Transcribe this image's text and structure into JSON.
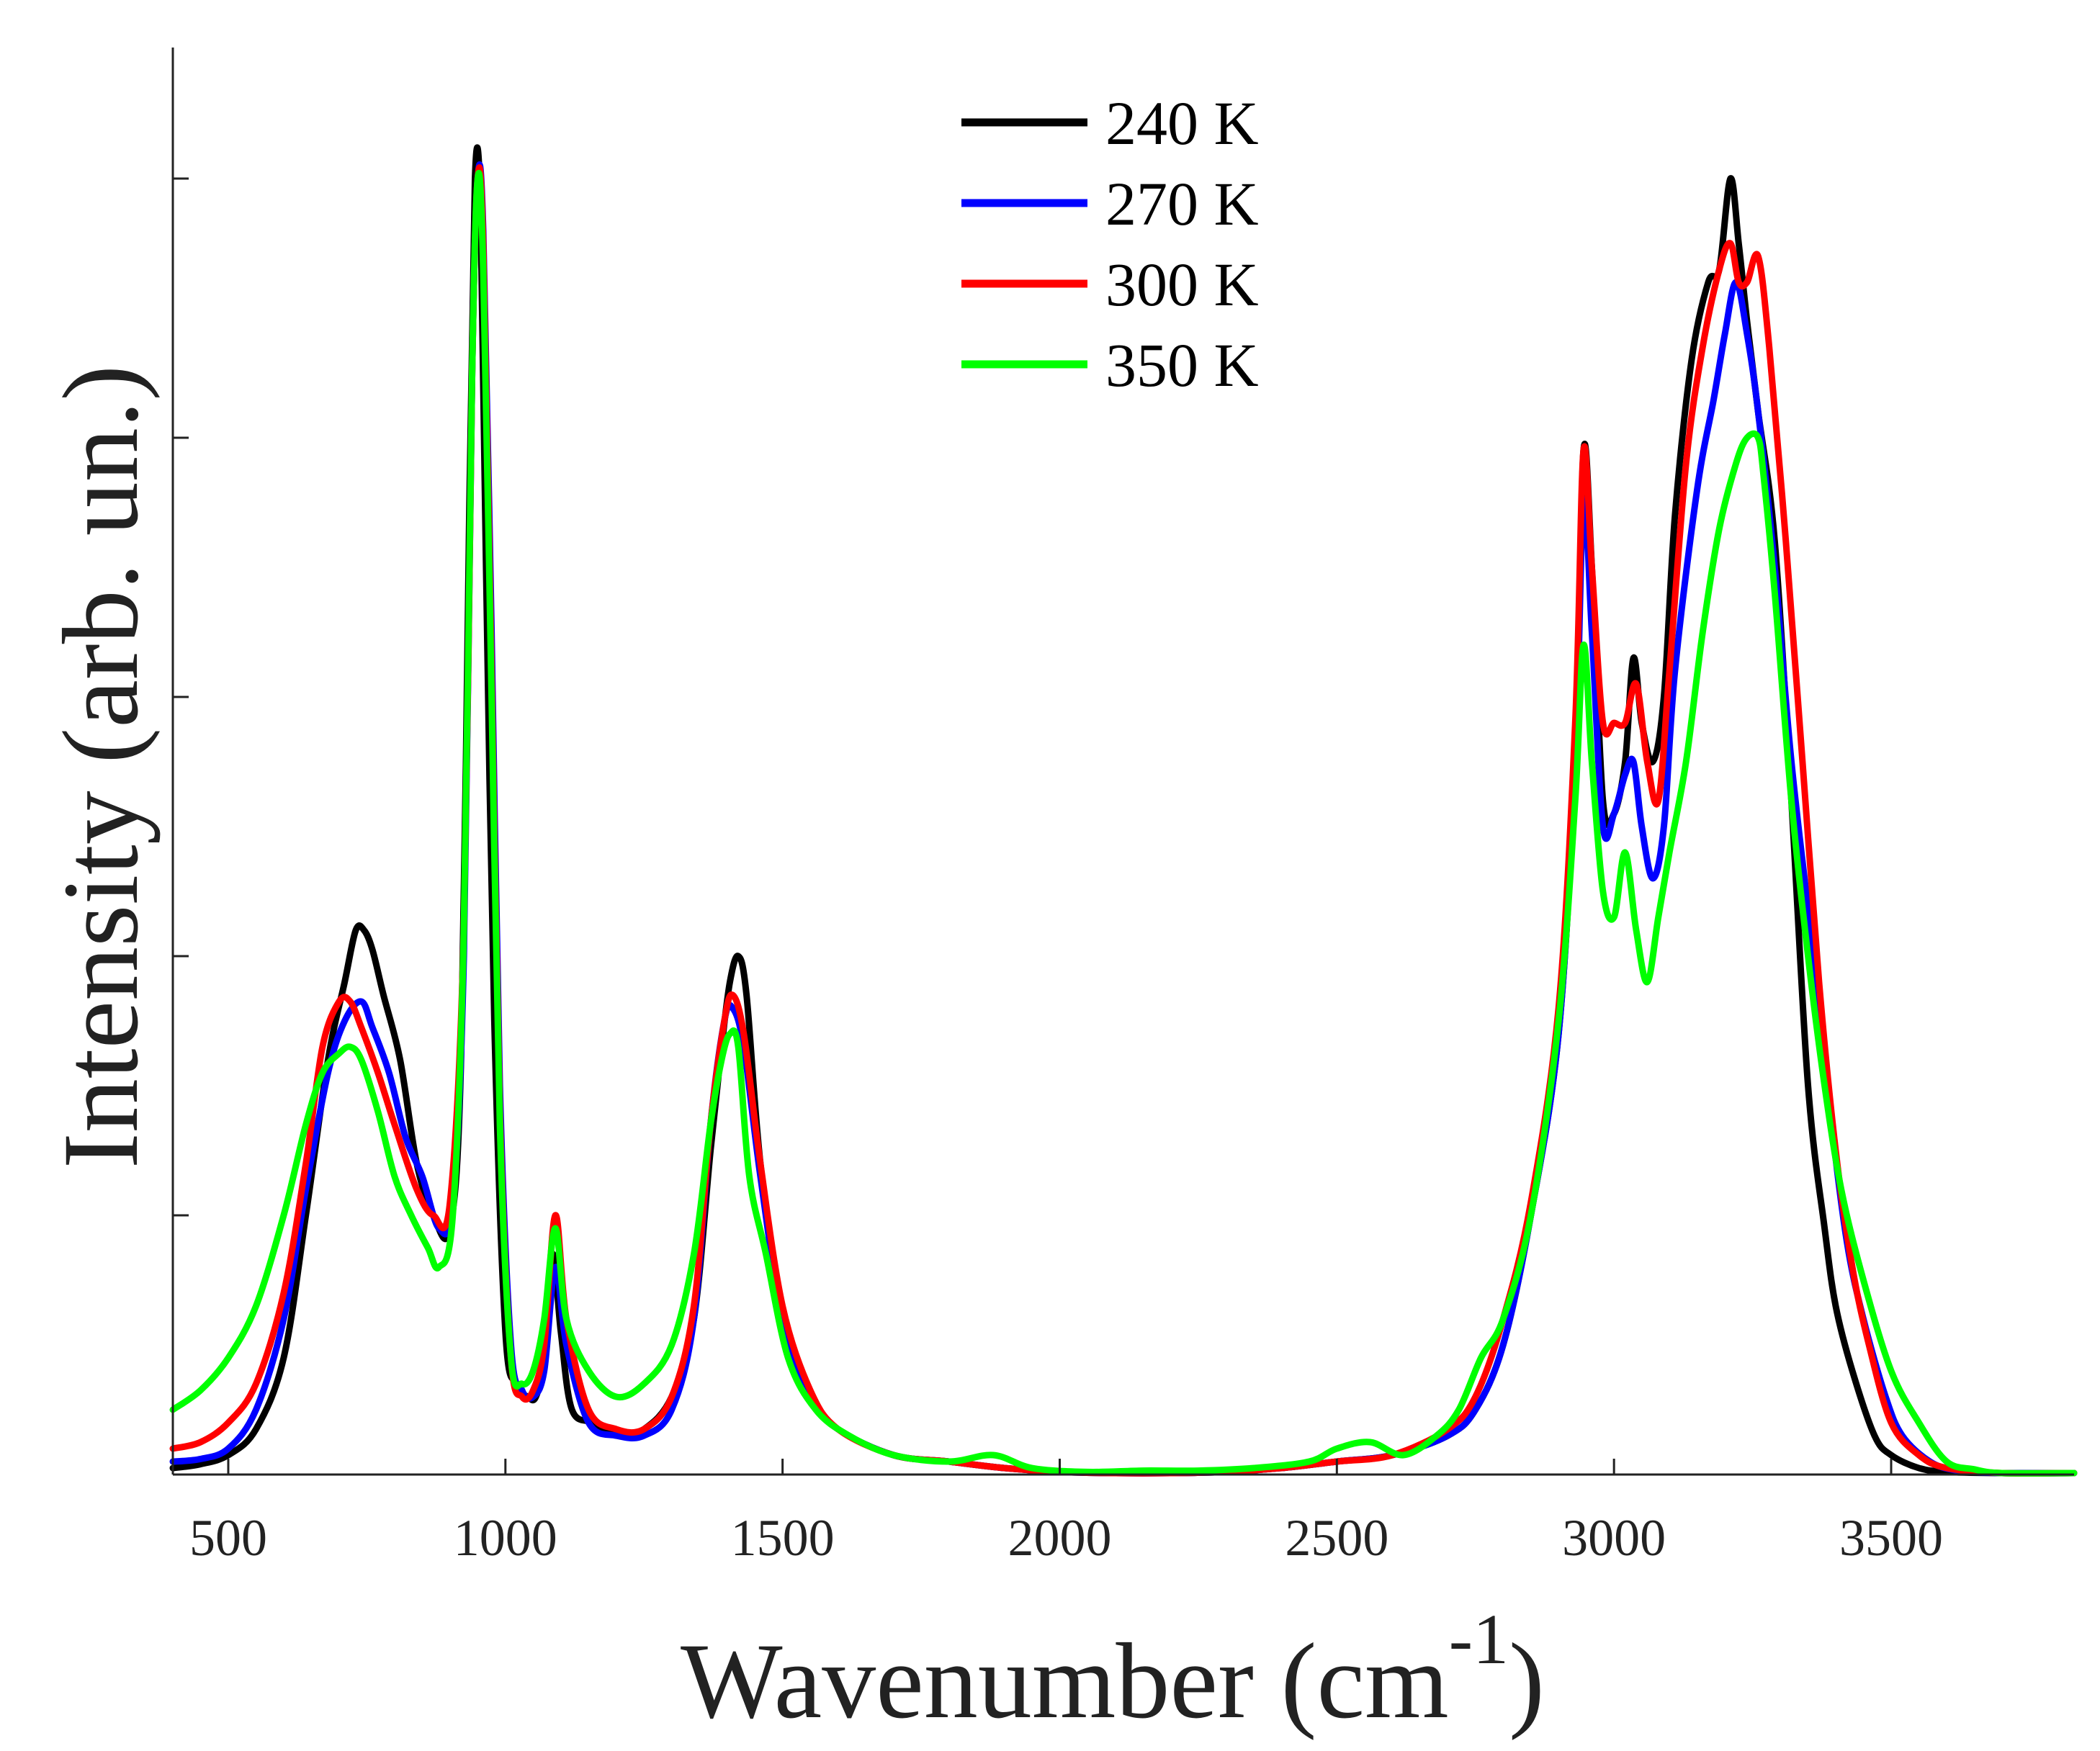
{
  "chart_data": {
    "type": "line",
    "title": "",
    "xlabel": "Wavenumber (cm",
    "xlabel_superscript": "-1",
    "xlabel_close": ")",
    "ylabel": "Intensity (arb. un.)",
    "xlim": [
      400,
      3830
    ],
    "ylim": [
      0,
      1.2
    ],
    "xticks": [
      500,
      1000,
      1500,
      2000,
      2500,
      3000,
      3500
    ],
    "xtick_labels": [
      "500",
      "1000",
      "1500",
      "2000",
      "2500",
      "3000",
      "3500"
    ],
    "yticks": [
      0.2,
      0.4,
      0.6,
      0.8,
      1.0
    ],
    "grid": false,
    "legend_position": "top-center",
    "series": [
      {
        "name": "240 K",
        "color": "#000000",
        "x": [
          400,
          450,
          500,
          550,
          600,
          640,
          680,
          710,
          730,
          745,
          760,
          780,
          810,
          840,
          870,
          900,
          920,
          935,
          945,
          955,
          965,
          980,
          1000,
          1020,
          1040,
          1055,
          1070,
          1085,
          1100,
          1120,
          1160,
          1200,
          1250,
          1300,
          1340,
          1370,
          1390,
          1405,
          1420,
          1435,
          1460,
          1500,
          1550,
          1600,
          1700,
          1800,
          1900,
          2000,
          2100,
          2200,
          2300,
          2400,
          2500,
          2600,
          2700,
          2750,
          2800,
          2850,
          2900,
          2930,
          2945,
          2960,
          2980,
          3000,
          3020,
          3035,
          3050,
          3070,
          3090,
          3110,
          3140,
          3170,
          3190,
          3210,
          3225,
          3240,
          3260,
          3290,
          3320,
          3350,
          3380,
          3400,
          3430,
          3470,
          3500,
          3550,
          3600,
          3700,
          3830
        ],
        "values": [
          0.005,
          0.008,
          0.015,
          0.035,
          0.09,
          0.2,
          0.32,
          0.38,
          0.42,
          0.42,
          0.405,
          0.37,
          0.32,
          0.24,
          0.2,
          0.19,
          0.32,
          0.75,
          1.0,
          0.98,
          0.7,
          0.35,
          0.11,
          0.07,
          0.06,
          0.06,
          0.09,
          0.17,
          0.11,
          0.05,
          0.04,
          0.03,
          0.035,
          0.06,
          0.12,
          0.25,
          0.33,
          0.38,
          0.4,
          0.37,
          0.24,
          0.12,
          0.06,
          0.035,
          0.015,
          0.01,
          0.005,
          0.002,
          0.001,
          0.001,
          0.002,
          0.005,
          0.01,
          0.015,
          0.03,
          0.05,
          0.1,
          0.2,
          0.34,
          0.55,
          0.79,
          0.7,
          0.52,
          0.51,
          0.55,
          0.63,
          0.58,
          0.55,
          0.6,
          0.74,
          0.86,
          0.92,
          0.93,
          1.0,
          0.95,
          0.89,
          0.82,
          0.72,
          0.52,
          0.3,
          0.19,
          0.13,
          0.08,
          0.03,
          0.015,
          0.005,
          0.002,
          0.0,
          0.0
        ]
      },
      {
        "name": "270 K",
        "color": "#0000ff",
        "x": [
          400,
          450,
          500,
          550,
          600,
          640,
          680,
          710,
          740,
          760,
          790,
          820,
          850,
          880,
          905,
          925,
          940,
          950,
          960,
          975,
          990,
          1010,
          1030,
          1050,
          1070,
          1090,
          1110,
          1150,
          1200,
          1250,
          1300,
          1340,
          1370,
          1395,
          1410,
          1430,
          1460,
          1500,
          1550,
          1600,
          1700,
          1800,
          1900,
          2000,
          2100,
          2200,
          2300,
          2400,
          2500,
          2600,
          2700,
          2750,
          2800,
          2850,
          2900,
          2930,
          2945,
          2960,
          2980,
          3000,
          3020,
          3035,
          3050,
          3070,
          3090,
          3110,
          3150,
          3180,
          3200,
          3220,
          3240,
          3260,
          3290,
          3320,
          3360,
          3390,
          3420,
          3450,
          3490,
          3520,
          3570,
          3620,
          3700,
          3830
        ],
        "values": [
          0.01,
          0.012,
          0.02,
          0.05,
          0.12,
          0.22,
          0.31,
          0.35,
          0.365,
          0.345,
          0.31,
          0.26,
          0.23,
          0.19,
          0.21,
          0.4,
          0.85,
          1.0,
          0.96,
          0.65,
          0.3,
          0.1,
          0.065,
          0.06,
          0.08,
          0.16,
          0.1,
          0.04,
          0.03,
          0.03,
          0.05,
          0.12,
          0.27,
          0.35,
          0.36,
          0.33,
          0.23,
          0.12,
          0.06,
          0.035,
          0.015,
          0.01,
          0.005,
          0.002,
          0.001,
          0.001,
          0.002,
          0.005,
          0.01,
          0.015,
          0.03,
          0.05,
          0.1,
          0.2,
          0.34,
          0.55,
          0.75,
          0.65,
          0.5,
          0.51,
          0.54,
          0.55,
          0.5,
          0.46,
          0.5,
          0.62,
          0.76,
          0.83,
          0.88,
          0.92,
          0.88,
          0.82,
          0.7,
          0.55,
          0.4,
          0.28,
          0.18,
          0.12,
          0.06,
          0.03,
          0.01,
          0.003,
          0.001,
          0.0
        ]
      },
      {
        "name": "300 K",
        "color": "#ff0000",
        "x": [
          400,
          450,
          500,
          550,
          600,
          640,
          670,
          700,
          720,
          740,
          770,
          800,
          840,
          870,
          900,
          925,
          940,
          950,
          960,
          975,
          990,
          1010,
          1030,
          1050,
          1070,
          1090,
          1110,
          1150,
          1200,
          1250,
          1300,
          1340,
          1370,
          1395,
          1410,
          1430,
          1460,
          1500,
          1550,
          1600,
          1700,
          1800,
          1900,
          2000,
          2100,
          2200,
          2300,
          2400,
          2500,
          2600,
          2700,
          2750,
          2800,
          2850,
          2900,
          2930,
          2945,
          2960,
          2980,
          3000,
          3020,
          3040,
          3060,
          3080,
          3100,
          3130,
          3160,
          3190,
          3210,
          3225,
          3240,
          3260,
          3280,
          3310,
          3340,
          3370,
          3400,
          3430,
          3460,
          3500,
          3550,
          3600,
          3700,
          3830
        ],
        "values": [
          0.02,
          0.025,
          0.04,
          0.07,
          0.14,
          0.24,
          0.33,
          0.365,
          0.365,
          0.345,
          0.31,
          0.27,
          0.22,
          0.2,
          0.21,
          0.42,
          0.85,
          1.0,
          0.95,
          0.62,
          0.28,
          0.09,
          0.06,
          0.065,
          0.1,
          0.2,
          0.12,
          0.05,
          0.035,
          0.035,
          0.06,
          0.13,
          0.27,
          0.35,
          0.37,
          0.34,
          0.24,
          0.13,
          0.065,
          0.035,
          0.015,
          0.01,
          0.005,
          0.002,
          0.001,
          0.001,
          0.002,
          0.005,
          0.01,
          0.015,
          0.035,
          0.06,
          0.12,
          0.21,
          0.36,
          0.58,
          0.79,
          0.7,
          0.58,
          0.58,
          0.58,
          0.61,
          0.55,
          0.52,
          0.62,
          0.78,
          0.87,
          0.93,
          0.95,
          0.92,
          0.92,
          0.94,
          0.87,
          0.72,
          0.55,
          0.38,
          0.25,
          0.16,
          0.1,
          0.04,
          0.015,
          0.005,
          0.001,
          0.0
        ]
      },
      {
        "name": "350 K",
        "color": "#00ff00",
        "x": [
          400,
          450,
          500,
          550,
          600,
          640,
          670,
          700,
          720,
          740,
          770,
          800,
          830,
          860,
          880,
          905,
          925,
          940,
          950,
          960,
          975,
          990,
          1010,
          1030,
          1050,
          1070,
          1090,
          1110,
          1150,
          1200,
          1250,
          1300,
          1340,
          1370,
          1390,
          1405,
          1420,
          1440,
          1470,
          1510,
          1560,
          1620,
          1700,
          1800,
          1880,
          1950,
          2050,
          2150,
          2250,
          2350,
          2450,
          2500,
          2560,
          2620,
          2680,
          2720,
          2760,
          2800,
          2850,
          2900,
          2930,
          2945,
          2960,
          2980,
          3000,
          3020,
          3040,
          3060,
          3080,
          3100,
          3130,
          3160,
          3190,
          3220,
          3240,
          3260,
          3270,
          3290,
          3320,
          3350,
          3380,
          3410,
          3450,
          3500,
          3550,
          3600,
          3650,
          3700,
          3830
        ],
        "values": [
          0.05,
          0.065,
          0.09,
          0.13,
          0.2,
          0.27,
          0.31,
          0.325,
          0.33,
          0.32,
          0.28,
          0.23,
          0.2,
          0.175,
          0.16,
          0.2,
          0.42,
          0.85,
          1.0,
          0.93,
          0.6,
          0.27,
          0.09,
          0.07,
          0.08,
          0.12,
          0.19,
          0.12,
          0.08,
          0.06,
          0.07,
          0.1,
          0.17,
          0.27,
          0.32,
          0.34,
          0.33,
          0.23,
          0.17,
          0.09,
          0.05,
          0.03,
          0.015,
          0.01,
          0.015,
          0.005,
          0.002,
          0.003,
          0.003,
          0.005,
          0.01,
          0.02,
          0.025,
          0.015,
          0.03,
          0.05,
          0.09,
          0.12,
          0.2,
          0.35,
          0.52,
          0.64,
          0.55,
          0.45,
          0.43,
          0.48,
          0.42,
          0.38,
          0.43,
          0.48,
          0.55,
          0.65,
          0.73,
          0.78,
          0.8,
          0.8,
          0.77,
          0.68,
          0.52,
          0.4,
          0.3,
          0.22,
          0.15,
          0.08,
          0.04,
          0.01,
          0.004,
          0.001,
          0.0
        ]
      }
    ]
  }
}
